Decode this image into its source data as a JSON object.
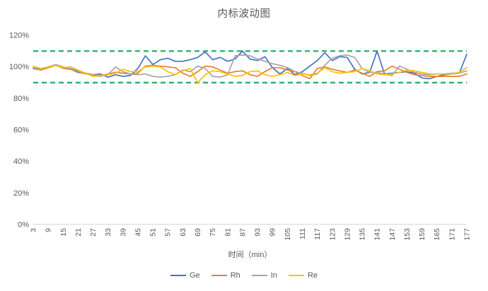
{
  "title": "内标波动图",
  "colors": {
    "title_text": "#595959",
    "axis_text": "#595959",
    "axis_line": "#d9d9d9",
    "background": "#ffffff",
    "limit_line": "#2db36d"
  },
  "chart_data": {
    "type": "line",
    "title": "内标波动图",
    "xlabel": "时间（min）",
    "ylabel": "",
    "legend_position": "bottom",
    "grid": false,
    "ylim_percent": [
      0,
      120
    ],
    "y_ticks": [
      {
        "value": 0,
        "label": "0%"
      },
      {
        "value": 20,
        "label": "20%"
      },
      {
        "value": 40,
        "label": "40%"
      },
      {
        "value": 60,
        "label": "60%"
      },
      {
        "value": 80,
        "label": "80%"
      },
      {
        "value": 100,
        "label": "100%"
      },
      {
        "value": 120,
        "label": "120%"
      }
    ],
    "x_tick_labels": [
      "3",
      "9",
      "15",
      "21",
      "27",
      "33",
      "39",
      "45",
      "51",
      "57",
      "63",
      "69",
      "75",
      "81",
      "87",
      "93",
      "99",
      "105",
      "111",
      "117",
      "123",
      "129",
      "135",
      "141",
      "147",
      "153",
      "159",
      "165",
      "171",
      "177"
    ],
    "x": [
      3,
      6,
      9,
      12,
      15,
      18,
      21,
      24,
      27,
      30,
      33,
      36,
      39,
      42,
      45,
      48,
      51,
      54,
      57,
      60,
      63,
      66,
      69,
      72,
      75,
      78,
      81,
      84,
      87,
      90,
      93,
      96,
      99,
      102,
      105,
      108,
      111,
      114,
      117,
      120,
      123,
      126,
      129,
      132,
      135,
      138,
      141,
      144,
      147,
      150,
      153,
      156,
      159,
      162,
      165,
      168,
      171,
      174,
      177
    ],
    "limit_lines": [
      {
        "value": 110,
        "color": "#2db36d",
        "style": "dashed"
      },
      {
        "value": 90,
        "color": "#2db36d",
        "style": "dashed"
      }
    ],
    "series": [
      {
        "name": "Ge",
        "color": "#4472C4",
        "values": [
          99,
          98,
          99.5,
          101,
          99.5,
          98.5,
          96.5,
          96,
          95,
          95.5,
          93.5,
          95,
          94,
          94.5,
          99,
          107,
          101.5,
          104.5,
          105.5,
          103.5,
          103.5,
          104.5,
          106,
          109.5,
          104.5,
          106,
          103.5,
          105,
          110,
          105,
          104,
          106.5,
          99.5,
          95.5,
          99,
          95,
          97,
          100.5,
          104,
          109,
          104,
          106.5,
          106,
          98.5,
          95.5,
          96.5,
          110,
          95.5,
          96,
          96.5,
          97,
          96,
          93,
          92.5,
          94,
          95,
          95.5,
          96,
          108
        ]
      },
      {
        "name": "Rh",
        "color": "#ED7D31",
        "values": [
          99.5,
          98,
          99.5,
          101,
          99,
          98.5,
          97,
          95.5,
          95,
          94.5,
          95.5,
          96.5,
          96,
          95.5,
          96,
          100.5,
          101,
          100.5,
          100,
          99.5,
          96,
          94,
          97,
          100.5,
          100,
          98,
          96,
          97,
          97.5,
          95,
          94,
          97,
          99.5,
          99.5,
          98,
          97,
          94.5,
          92.5,
          99,
          100,
          98.5,
          97.5,
          96.5,
          98,
          96,
          94,
          97,
          97.5,
          100.5,
          98.5,
          96.5,
          95,
          94.5,
          94,
          94,
          94,
          94,
          94,
          95.5
        ]
      },
      {
        "name": "In",
        "color": "#A5A5A5",
        "values": [
          99.5,
          98.5,
          100,
          101.5,
          100,
          99,
          97.5,
          96,
          94.5,
          94,
          95,
          100,
          97,
          95.5,
          95,
          95.5,
          94,
          93.5,
          94,
          95,
          98,
          97,
          100.5,
          99,
          94,
          93.5,
          95,
          107,
          107.5,
          107,
          105,
          103.5,
          102,
          101,
          99.5,
          97,
          96,
          94.5,
          95.5,
          101,
          105.5,
          107,
          107.5,
          106,
          99,
          96.5,
          96.5,
          95.5,
          94.5,
          100.5,
          98.5,
          96.5,
          95.5,
          95,
          95.5,
          95.5,
          96,
          96,
          97.5
        ]
      },
      {
        "name": "Re",
        "color": "#FFC000",
        "values": [
          100.5,
          99,
          100,
          101,
          99.5,
          100,
          98,
          96,
          94,
          94.5,
          95,
          96,
          98.5,
          97,
          97,
          100,
          100.5,
          100,
          97,
          95,
          97.5,
          99,
          90,
          95,
          97.5,
          97,
          95.5,
          94,
          94.5,
          97,
          97.5,
          95,
          94,
          95,
          96.5,
          94.5,
          95.5,
          95,
          96,
          99.5,
          97,
          96,
          96.5,
          97,
          99,
          97.5,
          95.5,
          95,
          95.5,
          96.5,
          98,
          97.5,
          96.5,
          95.5,
          95.5,
          95.5,
          95.5,
          96.5,
          99.5
        ]
      }
    ]
  }
}
